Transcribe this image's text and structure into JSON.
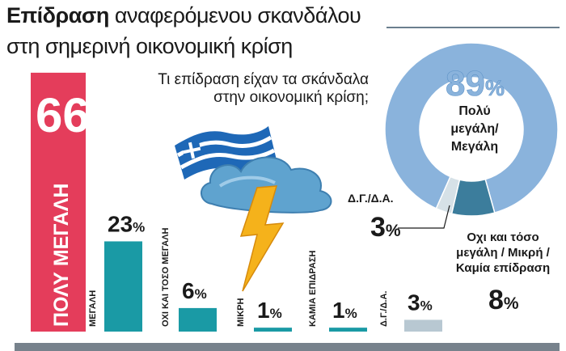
{
  "title_bold": "Επίδραση",
  "title_rest": "αναφερόμενου σκανδάλου",
  "title_line2": "στη σημερινή οικονομική κρίση",
  "question": "Τι επίδραση είχαν τα σκάνδαλα στην οικονομική κρίση;",
  "colors": {
    "big_bar": "#e43d5b",
    "bars": "#1a9aa5",
    "dk_bar": "#b8c8d2",
    "donut_main": "#8ab3dc",
    "donut_small": "#3c7d9c",
    "donut_dk": "#d6e1e7",
    "cloud": "#5fa3cf",
    "bolt": "#f5b21b"
  },
  "icons": [
    "greek-flag-icon",
    "storm-cloud-icon",
    "lightning-icon"
  ],
  "chart_data": [
    {
      "type": "bar",
      "categories": [
        "ΠΟΛΥ ΜΕΓΑΛΗ",
        "ΜΕΓΑΛΗ",
        "ΟΧΙ ΚΑΙ ΤΟΣΟ ΜΕΓΑΛΗ",
        "ΜΙΚΡΗ",
        "ΚΑΜΙΑ ΕΠΙΔΡΑΣΗ",
        "Δ.Γ./Δ.Α."
      ],
      "values": [
        66,
        23,
        6,
        1,
        1,
        3
      ],
      "value_labels": [
        "66%",
        "23%",
        "6%",
        "1%",
        "1%",
        "3%"
      ]
    },
    {
      "type": "pie",
      "categories": [
        "Πολύ μεγάλη/ Μεγάλη",
        "Οχι και τόσο μεγάλη / Μικρή / Καμία επίδραση",
        "Δ.Γ./Δ.Α."
      ],
      "values": [
        89,
        8,
        3
      ],
      "value_labels": [
        "89%",
        "8%",
        "3%"
      ]
    }
  ]
}
